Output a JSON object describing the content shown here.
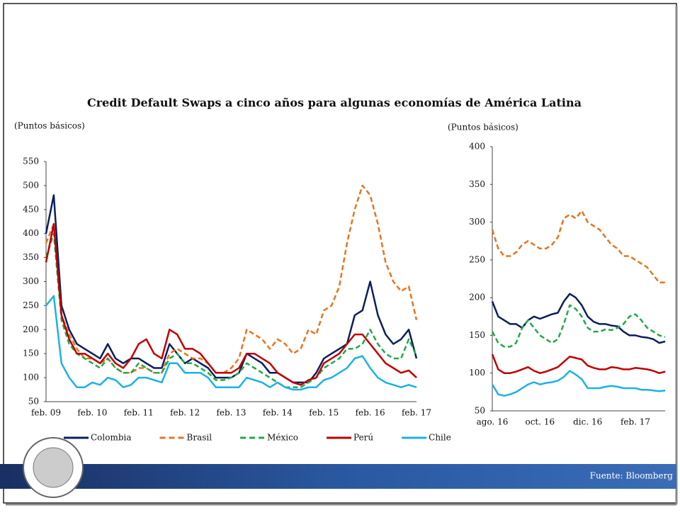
{
  "slide": {
    "title": "Credit Default Swaps a cinco años para algunas economías de América Latina",
    "source": "Fuente: Bloomberg"
  },
  "chart_data": [
    {
      "type": "line",
      "y_label": "(Puntos básicos)",
      "categories": [
        "feb. 09",
        null,
        null,
        null,
        null,
        null,
        "feb. 10",
        null,
        null,
        null,
        null,
        null,
        "feb. 11",
        null,
        null,
        null,
        null,
        null,
        "feb. 12",
        null,
        null,
        null,
        null,
        null,
        "feb. 13",
        null,
        null,
        null,
        null,
        null,
        "feb. 14",
        null,
        null,
        null,
        null,
        null,
        "feb. 15",
        null,
        null,
        null,
        null,
        null,
        "feb. 16",
        null,
        null,
        null,
        null,
        null,
        "feb. 17"
      ],
      "ylim": [
        50,
        550
      ],
      "yticks": [
        50,
        100,
        150,
        200,
        250,
        300,
        350,
        400,
        450,
        500,
        550
      ],
      "legend": "bottom",
      "series": [
        {
          "name": "Colombia",
          "color": "#0b1f5e",
          "dash": false,
          "values": [
            400,
            480,
            250,
            200,
            170,
            160,
            150,
            140,
            170,
            140,
            130,
            140,
            140,
            130,
            120,
            120,
            170,
            150,
            130,
            140,
            130,
            120,
            100,
            100,
            100,
            110,
            150,
            140,
            130,
            110,
            110,
            100,
            90,
            90,
            90,
            110,
            140,
            150,
            160,
            170,
            230,
            240,
            300,
            230,
            190,
            170,
            180,
            200,
            140
          ]
        },
        {
          "name": "Brasil",
          "color": "#e8731e",
          "dash": true,
          "values": [
            380,
            420,
            230,
            190,
            160,
            140,
            140,
            130,
            140,
            120,
            110,
            110,
            120,
            120,
            110,
            110,
            150,
            160,
            150,
            140,
            140,
            130,
            110,
            110,
            120,
            140,
            200,
            190,
            180,
            160,
            180,
            170,
            150,
            160,
            200,
            190,
            240,
            250,
            290,
            380,
            450,
            500,
            480,
            420,
            340,
            300,
            280,
            290,
            220
          ]
        },
        {
          "name": "México",
          "color": "#22a84a",
          "dash": true,
          "values": [
            350,
            400,
            220,
            170,
            150,
            140,
            130,
            120,
            140,
            120,
            110,
            110,
            130,
            120,
            110,
            110,
            140,
            150,
            130,
            130,
            120,
            110,
            95,
            95,
            100,
            110,
            130,
            120,
            110,
            100,
            90,
            80,
            80,
            80,
            90,
            100,
            120,
            130,
            140,
            160,
            160,
            170,
            200,
            170,
            150,
            140,
            140,
            180,
            145
          ]
        },
        {
          "name": "Perú",
          "color": "#c00000",
          "dash": false,
          "values": [
            340,
            420,
            230,
            180,
            150,
            150,
            140,
            130,
            150,
            130,
            120,
            140,
            170,
            180,
            150,
            140,
            200,
            190,
            160,
            160,
            150,
            130,
            110,
            110,
            110,
            120,
            150,
            150,
            140,
            130,
            110,
            100,
            90,
            85,
            95,
            100,
            130,
            140,
            150,
            170,
            190,
            190,
            170,
            150,
            130,
            120,
            110,
            115,
            100
          ]
        },
        {
          "name": "Chile",
          "color": "#1ab2e6",
          "dash": false,
          "values": [
            250,
            270,
            130,
            100,
            80,
            80,
            90,
            85,
            100,
            95,
            80,
            85,
            100,
            100,
            95,
            90,
            130,
            130,
            110,
            110,
            110,
            100,
            80,
            80,
            80,
            80,
            100,
            95,
            90,
            80,
            90,
            80,
            75,
            75,
            80,
            80,
            95,
            100,
            110,
            120,
            140,
            145,
            120,
            100,
            90,
            85,
            80,
            85,
            80
          ]
        }
      ]
    },
    {
      "type": "line",
      "y_label": "(Puntos básicos)",
      "categories": [
        "ago. 16",
        null,
        null,
        null,
        null,
        null,
        null,
        null,
        "oct. 16",
        null,
        null,
        null,
        null,
        null,
        null,
        null,
        "dic. 16",
        null,
        null,
        null,
        null,
        null,
        null,
        null,
        "feb. 17",
        null,
        null,
        null,
        null,
        null
      ],
      "ylim": [
        50,
        400
      ],
      "yticks": [
        50,
        100,
        150,
        200,
        250,
        300,
        350,
        400
      ],
      "series": [
        {
          "color": "#0b1f5e",
          "dash": false,
          "values": [
            195,
            175,
            170,
            165,
            165,
            160,
            170,
            175,
            172,
            175,
            178,
            180,
            195,
            205,
            200,
            190,
            175,
            168,
            165,
            165,
            163,
            162,
            155,
            150,
            150,
            148,
            147,
            145,
            140,
            142
          ]
        },
        {
          "color": "#e8731e",
          "dash": true,
          "values": [
            290,
            265,
            255,
            255,
            260,
            270,
            275,
            270,
            265,
            265,
            270,
            280,
            305,
            310,
            305,
            315,
            300,
            295,
            290,
            280,
            270,
            265,
            255,
            255,
            250,
            245,
            240,
            230,
            220,
            220
          ]
        },
        {
          "color": "#22a84a",
          "dash": true,
          "values": [
            155,
            140,
            135,
            135,
            140,
            160,
            170,
            160,
            150,
            145,
            140,
            145,
            165,
            190,
            185,
            175,
            160,
            155,
            155,
            158,
            157,
            160,
            165,
            175,
            178,
            170,
            160,
            155,
            150,
            148
          ]
        },
        {
          "color": "#c00000",
          "dash": false,
          "values": [
            125,
            105,
            100,
            100,
            102,
            105,
            108,
            103,
            100,
            102,
            105,
            108,
            115,
            122,
            120,
            118,
            110,
            107,
            105,
            105,
            108,
            107,
            105,
            105,
            107,
            106,
            105,
            103,
            100,
            102
          ]
        },
        {
          "color": "#1ab2e6",
          "dash": false,
          "values": [
            85,
            72,
            70,
            72,
            75,
            80,
            85,
            88,
            85,
            87,
            88,
            90,
            95,
            103,
            98,
            92,
            80,
            80,
            80,
            82,
            83,
            82,
            80,
            80,
            80,
            78,
            78,
            77,
            76,
            77
          ]
        }
      ]
    }
  ]
}
